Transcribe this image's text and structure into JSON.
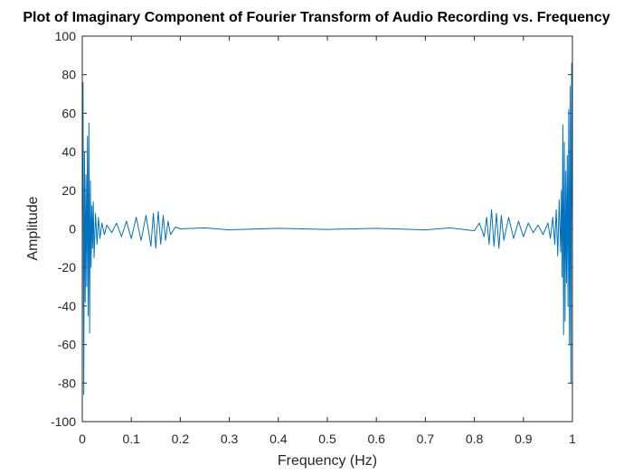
{
  "chart_data": {
    "type": "line",
    "title": "Plot of Imaginary Component of Fourier Transform of Audio Recording vs. Frequency",
    "xlabel": "Frequency (Hz)",
    "ylabel": "Amplitude",
    "xlim": [
      0,
      1
    ],
    "ylim": [
      -100,
      100
    ],
    "x_ticks": [
      "0",
      "0.1",
      "0.2",
      "0.3",
      "0.4",
      "0.5",
      "0.6",
      "0.7",
      "0.8",
      "0.9",
      "1"
    ],
    "y_ticks": [
      "100",
      "80",
      "60",
      "40",
      "20",
      "0",
      "-20",
      "-40",
      "-60",
      "-80",
      "-100"
    ],
    "grid": false,
    "legend": "none",
    "line_color": "#0072BD",
    "x": [
      0,
      0.0015,
      0.003,
      0.0045,
      0.006,
      0.0075,
      0.009,
      0.0105,
      0.012,
      0.0135,
      0.015,
      0.0165,
      0.018,
      0.0195,
      0.021,
      0.0225,
      0.024,
      0.027,
      0.03,
      0.033,
      0.036,
      0.04,
      0.045,
      0.05,
      0.06,
      0.07,
      0.08,
      0.09,
      0.1,
      0.11,
      0.12,
      0.13,
      0.14,
      0.145,
      0.15,
      0.155,
      0.16,
      0.165,
      0.17,
      0.175,
      0.18,
      0.19,
      0.2,
      0.25,
      0.3,
      0.4,
      0.5,
      0.6,
      0.7,
      0.75,
      0.8,
      0.81,
      0.82,
      0.825,
      0.83,
      0.835,
      0.84,
      0.845,
      0.85,
      0.855,
      0.86,
      0.87,
      0.88,
      0.89,
      0.9,
      0.91,
      0.92,
      0.93,
      0.94,
      0.95,
      0.955,
      0.96,
      0.964,
      0.967,
      0.97,
      0.973,
      0.976,
      0.9775,
      0.979,
      0.9805,
      0.982,
      0.9835,
      0.985,
      0.9865,
      0.988,
      0.9895,
      0.991,
      0.9925,
      0.994,
      0.9955,
      0.997,
      0.9985,
      1
    ],
    "y": [
      0,
      76,
      -86,
      40,
      -38,
      28,
      -30,
      48,
      -45,
      55,
      -54,
      25,
      -20,
      12,
      -10,
      14,
      -15,
      8,
      -8,
      6,
      -5,
      3,
      -3,
      2,
      -2,
      3,
      -4,
      4,
      -5,
      6,
      -6,
      7,
      -9,
      8,
      -10,
      9,
      -8,
      7,
      -6,
      4,
      -3,
      1,
      0,
      0.5,
      -0.5,
      0.3,
      -0.3,
      0.3,
      -0.5,
      0.5,
      -1,
      3,
      -4,
      6,
      -8,
      10,
      -9,
      8,
      -10,
      7,
      -6,
      6,
      -5,
      4,
      -4,
      3,
      -2,
      2,
      -3,
      3,
      -5,
      6,
      -8,
      10,
      -14,
      15,
      -12,
      20,
      -25,
      54,
      -55,
      45,
      -48,
      30,
      -28,
      38,
      -40,
      62,
      -60,
      74,
      -80,
      86,
      0
    ]
  }
}
